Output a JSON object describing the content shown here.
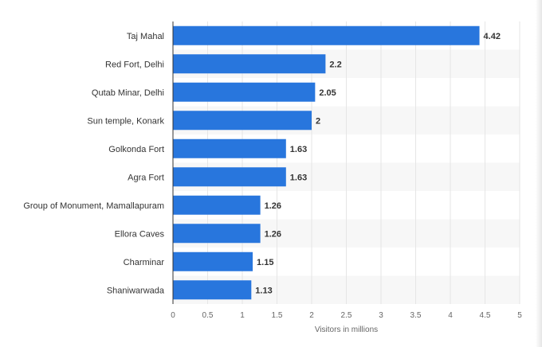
{
  "chart_data": {
    "type": "bar",
    "orientation": "horizontal",
    "categories": [
      "Taj Mahal",
      "Red Fort, Delhi",
      "Qutab Minar, Delhi",
      "Sun temple, Konark",
      "Golkonda Fort",
      "Agra Fort",
      "Group of Monument, Mamallapuram",
      "Ellora Caves",
      "Charminar",
      "Shaniwarwada"
    ],
    "values": [
      4.42,
      2.2,
      2.05,
      2,
      1.63,
      1.63,
      1.26,
      1.26,
      1.15,
      1.13
    ],
    "value_labels": [
      "4.42",
      "2.2",
      "2.05",
      "2",
      "1.63",
      "1.63",
      "1.26",
      "1.26",
      "1.15",
      "1.13"
    ],
    "xlabel": "Visitors in millions",
    "ylabel": "",
    "xlim": [
      0,
      5
    ],
    "xticks": [
      "0",
      "0.5",
      "1",
      "1.5",
      "2",
      "2.5",
      "3",
      "3.5",
      "4",
      "4.5",
      "5"
    ],
    "grid": true,
    "colors": {
      "bar": "#2876dd",
      "band": "#f7f7f7",
      "grid": "#e6e6e6",
      "axis": "#333333"
    }
  }
}
